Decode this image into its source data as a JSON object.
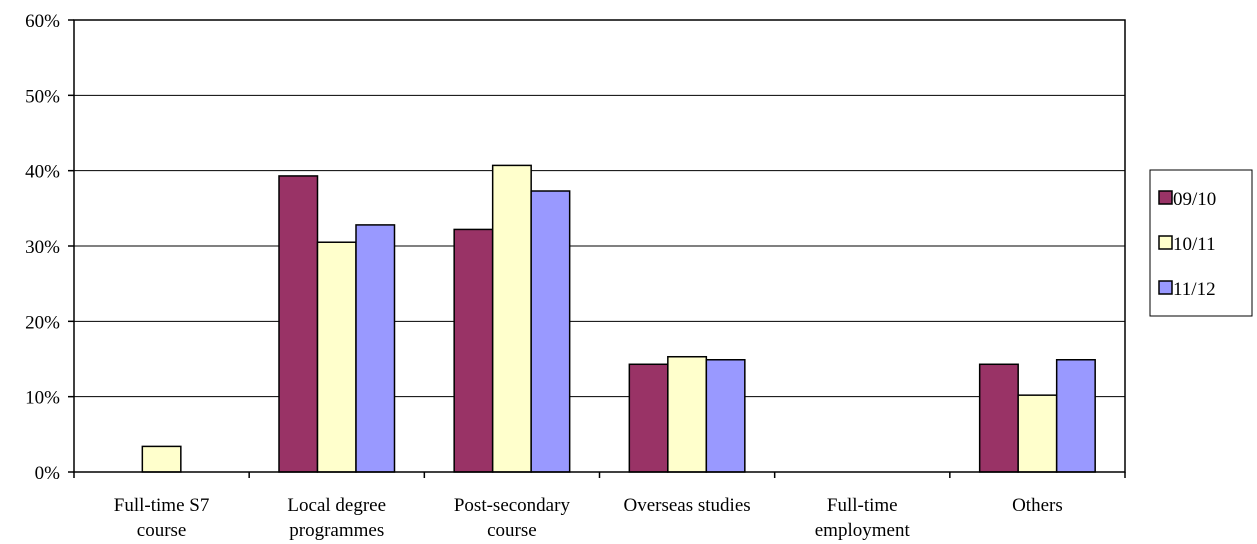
{
  "chart_data": {
    "type": "bar",
    "title": "",
    "xlabel": "",
    "ylabel": "",
    "ylim": [
      0,
      0.6
    ],
    "yticks": [
      "0%",
      "10%",
      "20%",
      "30%",
      "40%",
      "50%",
      "60%"
    ],
    "grid": true,
    "legend_position": "right",
    "categories": [
      [
        "Full-time S7",
        "course"
      ],
      [
        "Local degree",
        "programmes"
      ],
      [
        "Post-secondary",
        "course"
      ],
      [
        "Overseas studies"
      ],
      [
        "Full-time",
        "employment"
      ],
      [
        "Others"
      ]
    ],
    "series": [
      {
        "name": "09/10",
        "color": "#993366",
        "values": [
          0.0,
          0.393,
          0.322,
          0.143,
          0.0,
          0.143
        ]
      },
      {
        "name": "10/11",
        "color": "#FFFFCC",
        "values": [
          0.034,
          0.305,
          0.407,
          0.153,
          0.0,
          0.102
        ]
      },
      {
        "name": "11/12",
        "color": "#9999FF",
        "values": [
          0.0,
          0.328,
          0.373,
          0.149,
          0.0,
          0.149
        ]
      }
    ]
  }
}
